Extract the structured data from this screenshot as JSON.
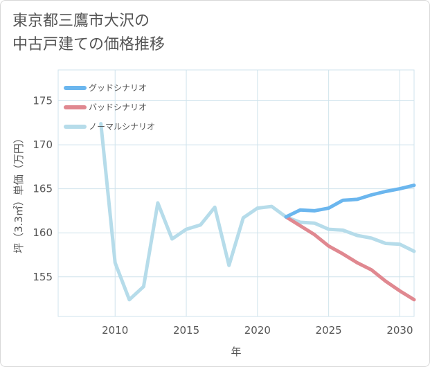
{
  "chart_data": {
    "type": "line",
    "title_lines": [
      "東京都三鷹市大沢の",
      "中古戸建ての価格推移"
    ],
    "xlabel": "年",
    "ylabel": "坪（3.3㎡）単価（万円）",
    "xlim": [
      2006,
      2031
    ],
    "ylim": [
      150.5,
      178.5
    ],
    "x_ticks": [
      2010,
      2015,
      2020,
      2025,
      2030
    ],
    "y_ticks": [
      155,
      160,
      165,
      170,
      175
    ],
    "grid": true,
    "legend_position": "top-left",
    "series": [
      {
        "name": "グッドシナリオ",
        "color": "#6bb6ee",
        "x": [
          2022,
          2023,
          2024,
          2025,
          2026,
          2027,
          2028,
          2029,
          2030,
          2031
        ],
        "y": [
          161.8,
          162.6,
          162.5,
          162.8,
          163.7,
          163.8,
          164.3,
          164.7,
          165.0,
          165.4
        ]
      },
      {
        "name": "バッドシナリオ",
        "color": "#e08890",
        "x": [
          2022,
          2023,
          2024,
          2025,
          2026,
          2027,
          2028,
          2029,
          2030,
          2031
        ],
        "y": [
          161.8,
          160.8,
          159.8,
          158.5,
          157.6,
          156.6,
          155.8,
          154.5,
          153.4,
          152.4
        ]
      },
      {
        "name": "ノーマルシナリオ",
        "color": "#b6dcea",
        "x": [
          2009,
          2010,
          2011,
          2012,
          2013,
          2014,
          2015,
          2016,
          2017,
          2018,
          2019,
          2020,
          2021,
          2022,
          2023,
          2024,
          2025,
          2026,
          2027,
          2028,
          2029,
          2030,
          2031
        ],
        "y": [
          172.4,
          156.6,
          152.4,
          153.9,
          163.4,
          159.3,
          160.4,
          160.9,
          162.9,
          156.3,
          161.7,
          162.8,
          163.0,
          161.8,
          161.2,
          161.1,
          160.4,
          160.3,
          159.7,
          159.4,
          158.8,
          158.7,
          157.9
        ]
      }
    ]
  }
}
